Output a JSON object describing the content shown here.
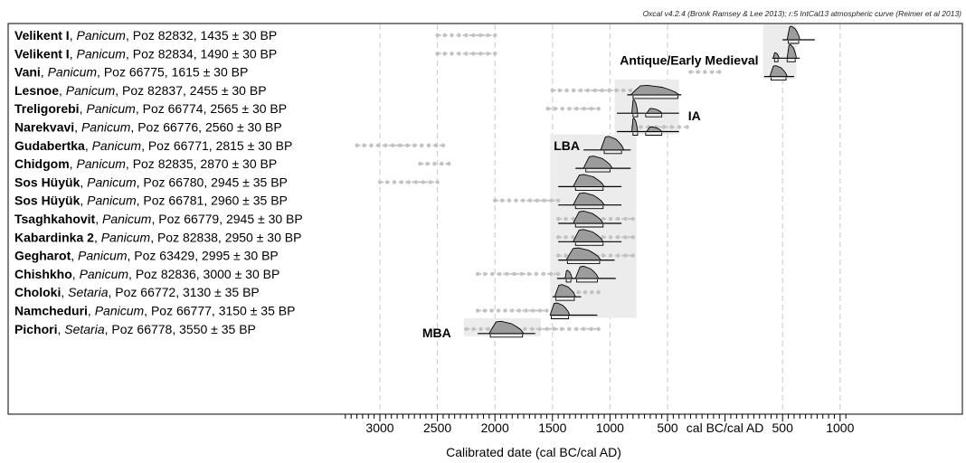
{
  "chart_data": {
    "type": "range",
    "credit": "Oxcal v4.2.4 (Bronk Ramsey & Lee 2013); r:5 IntCal13 atmospheric curve (Reimer et al 2013)",
    "xlabel": "Calibrated date (cal BC/cal AD)",
    "era_label": "cal BC/cal AD",
    "x_range": [
      -3300,
      1050
    ],
    "x_ticks": [
      {
        "value": -3000,
        "label": "3000"
      },
      {
        "value": -2500,
        "label": "2500"
      },
      {
        "value": -2000,
        "label": "2000"
      },
      {
        "value": -1500,
        "label": "1500"
      },
      {
        "value": -1000,
        "label": "1000"
      },
      {
        "value": -500,
        "label": "500"
      },
      {
        "value": 500,
        "label": "500"
      },
      {
        "value": 1000,
        "label": "1000"
      }
    ],
    "periods": [
      {
        "label": "Antique/Early Medieval",
        "start": 330,
        "end": 620,
        "rows": [
          0,
          2
        ]
      },
      {
        "label": "IA",
        "start": -960,
        "end": -400,
        "rows": [
          3,
          5
        ]
      },
      {
        "label": "LBA",
        "start": -1520,
        "end": -770,
        "rows": [
          6,
          15
        ]
      },
      {
        "label": "MBA",
        "start": -2270,
        "end": -1600,
        "rows": [
          16,
          16
        ]
      }
    ],
    "samples": [
      {
        "site": "Velikent I",
        "taxon": "Panicum",
        "sep": ", ",
        "lab": "Poz 82832",
        "age": "1435 ± 30 BP",
        "unmodelled": [
          -2500,
          -2000
        ],
        "modelled": [
          [
            540,
            650,
            1
          ]
        ],
        "range": [
          500,
          780
        ],
        "hpd": [
          [
            550,
            640
          ]
        ]
      },
      {
        "site": "Velikent I",
        "taxon": "Panicum",
        "sep": ", ",
        "lab": "Poz 82834",
        "age": "1490 ± 30 BP",
        "unmodelled": [
          -2500,
          -2000
        ],
        "modelled": [
          [
            420,
            470,
            0.4
          ],
          [
            540,
            620,
            1
          ]
        ],
        "range": [
          410,
          650
        ],
        "hpd": [
          [
            430,
            460
          ],
          [
            540,
            610
          ]
        ]
      },
      {
        "site": "Vani",
        "taxon": "Panicum",
        "sep": ", ",
        "lab": "Poz 66775",
        "age": "1615 ± 30 BP",
        "unmodelled": [
          -300,
          -50
        ],
        "modelled": [
          [
            390,
            540,
            0.8
          ]
        ],
        "range": [
          340,
          600
        ],
        "hpd": [
          [
            400,
            530
          ]
        ]
      },
      {
        "site": "Lesnoe",
        "taxon": "Panicum",
        "sep": ", ",
        "lab": "Poz 82837",
        "age": "2455 ± 30 BP",
        "unmodelled": [
          -1500,
          -700
        ],
        "modelled": [
          [
            -820,
            -400,
            0.7
          ]
        ],
        "range": [
          -850,
          -380
        ],
        "hpd": [
          [
            -800,
            -410
          ]
        ]
      },
      {
        "site": "Treligorebi",
        "taxon": "Panicum",
        "sep": ", ",
        "lab": "Poz 66774",
        "age": "2565 ± 30 BP",
        "unmodelled": [
          -1540,
          -1100
        ],
        "modelled": [
          [
            -810,
            -760,
            1
          ],
          [
            -680,
            -550,
            0.35
          ]
        ],
        "range": [
          -940,
          -400
        ],
        "hpd": [
          [
            -800,
            -760
          ],
          [
            -690,
            -550
          ]
        ]
      },
      {
        "site": "Narekvavi",
        "taxon": "Panicum",
        "sep": ", ",
        "lab": "Poz 66776",
        "age": "2560 ± 30 BP",
        "unmodelled": [
          -800,
          -330
        ],
        "modelled": [
          [
            -810,
            -760,
            1
          ],
          [
            -680,
            -550,
            0.35
          ]
        ],
        "range": [
          -940,
          -400
        ],
        "hpd": [
          [
            -800,
            -760
          ],
          [
            -690,
            -550
          ]
        ]
      },
      {
        "site": "Gudabertka",
        "taxon": "Panicum",
        "sep": ", ",
        "lab": "Poz 66771",
        "age": "2815 ± 30 BP",
        "unmodelled": [
          -3200,
          -2450
        ],
        "modelled": [
          [
            -1080,
            -880,
            1
          ]
        ],
        "range": [
          -1230,
          -820
        ],
        "hpd": [
          [
            -1050,
            -900
          ]
        ]
      },
      {
        "site": "Chidgom",
        "taxon": "Panicum",
        "sep": ", ",
        "lab": "Poz 82835",
        "age": "2870 ± 30 BP",
        "unmodelled": [
          -2650,
          -2400
        ],
        "modelled": [
          [
            -1230,
            -980,
            0.9
          ]
        ],
        "range": [
          -1300,
          -820
        ],
        "hpd": [
          [
            -1210,
            -1000
          ]
        ]
      },
      {
        "site": "Sos Hüyük",
        "taxon": "Panicum",
        "sep": ", ",
        "lab": "Poz 66780",
        "age": "2945 ± 35 BP",
        "unmodelled": [
          -3000,
          -2500
        ],
        "modelled": [
          [
            -1320,
            -1050,
            0.9
          ]
        ],
        "range": [
          -1450,
          -900
        ],
        "hpd": [
          [
            -1300,
            -1060
          ]
        ]
      },
      {
        "site": "Sos Hüyük",
        "taxon": "Panicum",
        "sep": ", ",
        "lab": "Poz 66781",
        "age": "2960 ± 35 BP",
        "unmodelled": [
          -2000,
          -1450
        ],
        "modelled": [
          [
            -1320,
            -1050,
            0.9
          ]
        ],
        "range": [
          -1450,
          -900
        ],
        "hpd": [
          [
            -1300,
            -1060
          ]
        ]
      },
      {
        "site": "Tsaghkahovit",
        "taxon": "Panicum",
        "sep": ", ",
        "lab": "Poz 66779",
        "age": "2945 ± 30 BP",
        "unmodelled": [
          -1450,
          -800
        ],
        "modelled": [
          [
            -1320,
            -1060,
            0.9
          ]
        ],
        "range": [
          -1450,
          -900
        ],
        "hpd": [
          [
            -1300,
            -1060
          ]
        ]
      },
      {
        "site": "Kabardinka 2",
        "taxon": "Panicum",
        "sep": ", ",
        "lab": "Poz 82838",
        "age": "2950 ± 30 BP",
        "unmodelled": [
          -1450,
          -800
        ],
        "modelled": [
          [
            -1320,
            -1060,
            0.9
          ]
        ],
        "range": [
          -1450,
          -900
        ],
        "hpd": [
          [
            -1300,
            -1060
          ]
        ]
      },
      {
        "site": "Gegharot",
        "taxon": "Panicum",
        "sep": ", ",
        "lab": "Poz 63429",
        "age": "2995 ± 30 BP",
        "unmodelled": [
          -1450,
          -800
        ],
        "modelled": [
          [
            -1380,
            -1080,
            0.9
          ]
        ],
        "range": [
          -1450,
          -960
        ],
        "hpd": [
          [
            -1370,
            -1090
          ]
        ]
      },
      {
        "site": "Chishkho",
        "taxon": "Panicum",
        "sep": ", ",
        "lab": "Poz 82836",
        "age": "3000 ± 30 BP",
        "unmodelled": [
          -2150,
          -1450
        ],
        "modelled": [
          [
            -1390,
            -1330,
            0.6
          ],
          [
            -1300,
            -1100,
            0.9
          ]
        ],
        "range": [
          -1460,
          -950
        ],
        "hpd": [
          [
            -1380,
            -1340
          ],
          [
            -1290,
            -1110
          ]
        ]
      },
      {
        "site": "Choloki",
        "taxon": "Setaria",
        "sep": ", ",
        "lab": "Poz 66772",
        "age": "3130 ± 35 BP",
        "unmodelled": [
          -1450,
          -1100
        ],
        "modelled": [
          [
            -1480,
            -1300,
            0.9
          ]
        ],
        "range": [
          -1500,
          -1250
        ],
        "hpd": [
          [
            -1470,
            -1310
          ]
        ]
      },
      {
        "site": "Namcheduri",
        "taxon": "Panicum",
        "sep": ", ",
        "lab": "Poz 66777",
        "age": "3150 ± 35 BP",
        "unmodelled": [
          -2150,
          -1550
        ],
        "modelled": [
          [
            -1520,
            -1350,
            0.9
          ]
        ],
        "range": [
          -1520,
          -1110
        ],
        "hpd": [
          [
            -1510,
            -1360
          ]
        ]
      },
      {
        "site": "Pichori",
        "taxon": "Setaria",
        "sep": ", ",
        "lab": "Poz 66778",
        "age": "3550 ± 35 BP",
        "unmodelled": [
          -2250,
          -1100
        ],
        "modelled": [
          [
            -2050,
            -1750,
            0.9
          ]
        ],
        "range": [
          -2150,
          -1650
        ],
        "hpd": [
          [
            -2040,
            -1760
          ]
        ]
      }
    ]
  }
}
